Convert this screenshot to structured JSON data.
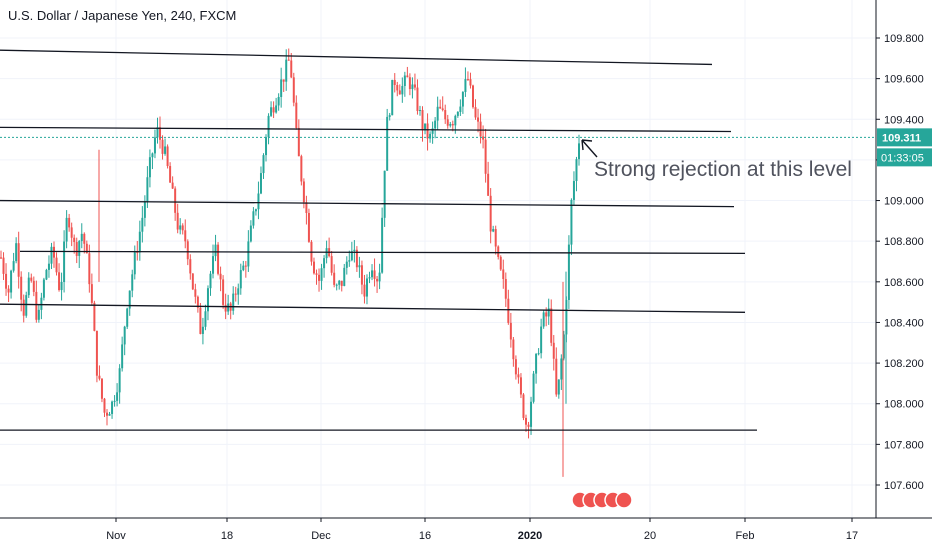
{
  "chart_title": "U.S. Dollar / Japanese Yen, 240, FXCM",
  "chart_data": {
    "type": "candlestick",
    "title": "U.S. Dollar / Japanese Yen, 240, FXCM",
    "y_axis": {
      "ticks": [
        "109.800",
        "109.600",
        "109.400",
        "109.200",
        "109.000",
        "108.800",
        "108.600",
        "108.400",
        "108.200",
        "108.000",
        "107.800",
        "107.600"
      ],
      "range": [
        107.46,
        109.96
      ],
      "position": "right"
    },
    "x_axis": {
      "ticks": [
        {
          "label": "Nov",
          "bold": false
        },
        {
          "label": "18",
          "bold": false
        },
        {
          "label": "Dec",
          "bold": false
        },
        {
          "label": "16",
          "bold": false
        },
        {
          "label": "2020",
          "bold": true
        },
        {
          "label": "20",
          "bold": false
        },
        {
          "label": "Feb",
          "bold": false
        },
        {
          "label": "17",
          "bold": false
        }
      ]
    },
    "current_price": "109.311",
    "countdown": "01:33:05",
    "colors": {
      "up": "#26a69a",
      "down": "#ef5350",
      "price_line": "#26a69a",
      "level_line": "#131722"
    },
    "price_path": [
      108.72,
      108.55,
      108.8,
      108.45,
      108.62,
      108.4,
      108.65,
      108.75,
      108.55,
      108.95,
      108.75,
      108.85,
      108.6,
      108.15,
      107.95,
      108.0,
      108.15,
      108.5,
      108.7,
      108.9,
      109.15,
      109.35,
      109.25,
      109.05,
      108.85,
      108.8,
      108.55,
      108.35,
      108.6,
      108.75,
      108.5,
      108.45,
      108.6,
      108.7,
      108.9,
      109.1,
      109.4,
      109.5,
      109.6,
      109.7,
      109.25,
      109.0,
      108.7,
      108.6,
      108.8,
      108.55,
      108.6,
      108.75,
      108.7,
      108.55,
      108.7,
      108.6,
      109.35,
      109.6,
      109.55,
      109.6,
      109.5,
      109.35,
      109.3,
      109.45,
      109.4,
      109.4,
      109.5,
      109.6,
      109.4,
      109.3,
      108.9,
      108.7,
      108.55,
      108.3,
      108.05,
      107.88,
      108.15,
      108.4,
      108.45,
      108.0,
      108.35,
      109.0,
      109.3
    ],
    "support_resistance_lines": [
      {
        "from": 109.74,
        "to": 109.67
      },
      {
        "from": 109.36,
        "to": 109.34
      },
      {
        "from": 109.0,
        "to": 108.97
      },
      {
        "from": 108.75,
        "to": 108.74
      },
      {
        "from": 108.49,
        "to": 108.45
      },
      {
        "from": 107.87,
        "to": 107.87
      }
    ],
    "annotations": [
      {
        "text": "Strong rejection at this level",
        "arrow": true
      }
    ]
  }
}
